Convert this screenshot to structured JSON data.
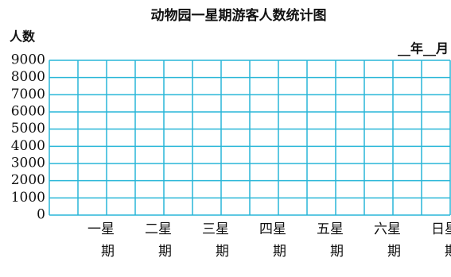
{
  "chart_data": {
    "type": "bar",
    "title": "动物园一星期游客人数统计图",
    "y_label": "人数",
    "date_label": "__年__月",
    "categories": [
      "星期一",
      "星期二",
      "星期三",
      "星期四",
      "星期五",
      "星期六",
      "星期日"
    ],
    "ylim": [
      0,
      9000
    ],
    "yticks": [
      0,
      1000,
      2000,
      3000,
      4000,
      5000,
      6000,
      7000,
      8000,
      9000
    ],
    "grid": true,
    "color": "#29b6d8"
  }
}
